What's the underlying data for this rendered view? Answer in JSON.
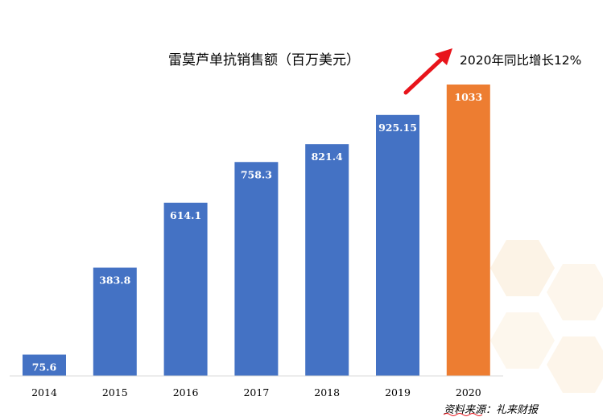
{
  "chart_data": {
    "type": "bar",
    "title": "雷莫芦单抗销售额（百万美元）",
    "categories": [
      "2014",
      "2015",
      "2016",
      "2017",
      "2018",
      "2019",
      "2020"
    ],
    "values": [
      75.6,
      383.8,
      614.1,
      758.3,
      821.4,
      925.15,
      1033
    ],
    "value_labels": [
      "75.6",
      "383.8",
      "614.1",
      "758.3",
      "821.4",
      "925.15",
      "1033"
    ],
    "bar_colors": [
      "#4472C4",
      "#4472C4",
      "#4472C4",
      "#4472C4",
      "#4472C4",
      "#4472C4",
      "#ED7D31"
    ],
    "ylim": [
      0,
      1033
    ],
    "grid": false,
    "annotation": "2020年同比增长12%",
    "annotation_arrow_color": "#E8141B",
    "source": "资料来源：礼来财报"
  }
}
